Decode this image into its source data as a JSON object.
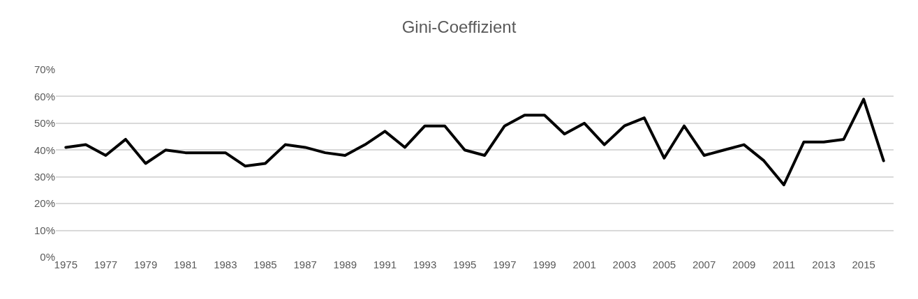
{
  "chart_data": {
    "type": "line",
    "title": "Gini-Coeffizient",
    "categories": [
      "1975",
      null,
      "1977",
      null,
      "1979",
      null,
      "1981",
      null,
      "1983",
      null,
      "1985",
      null,
      "1987",
      null,
      "1989",
      null,
      "1991",
      null,
      "1993",
      null,
      "1995",
      null,
      "1997",
      null,
      "1999",
      null,
      "2001",
      null,
      "2003",
      null,
      "2005",
      null,
      "2007",
      null,
      "2009",
      null,
      "2011",
      null,
      "2013",
      null,
      "2015",
      null
    ],
    "series": [
      {
        "color": "#000000",
        "values": [
          41,
          42,
          38,
          44,
          35,
          40,
          39,
          39,
          39,
          34,
          35,
          42,
          41,
          39,
          38,
          42,
          47,
          41,
          49,
          49,
          40,
          38,
          49,
          53,
          53,
          46,
          50,
          42,
          49,
          52,
          37,
          49,
          38,
          40,
          42,
          36,
          27,
          43,
          43,
          44,
          59,
          36
        ]
      }
    ],
    "ylim": [
      0,
      70
    ],
    "yticks": [
      {
        "value": 0,
        "label": "0%"
      },
      {
        "value": 10,
        "label": "10%"
      },
      {
        "value": 20,
        "label": "20%"
      },
      {
        "value": 30,
        "label": "30%"
      },
      {
        "value": 40,
        "label": "40%"
      },
      {
        "value": 50,
        "label": "50%"
      },
      {
        "value": 60,
        "label": "60%"
      },
      {
        "value": 70,
        "label": "70%"
      }
    ],
    "grid": "y",
    "marker": "none",
    "line_style": "solid"
  }
}
